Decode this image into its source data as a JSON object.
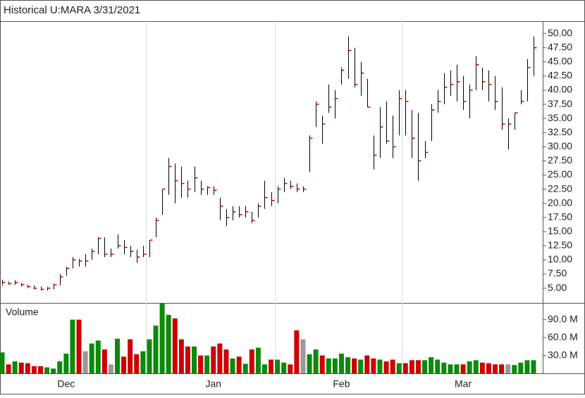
{
  "chart_data": [
    {
      "type": "ohlc",
      "title": "Historical U:MARA 3/31/2021",
      "color": "#000000",
      "close_color": "#cc0000",
      "high": [
        6.5,
        6.2,
        6.4,
        5.9,
        5.6,
        5.5,
        5.3,
        5.2,
        5.8,
        7.5,
        8.8,
        10.5,
        10.2,
        11.0,
        12.0,
        14.0,
        14.0,
        12.0,
        14.5,
        13.5,
        12.5,
        11.8,
        12.5,
        13.5,
        17.5,
        22.5,
        28,
        27,
        26.5,
        24,
        26.5,
        24,
        23,
        23,
        21,
        19,
        19.5,
        19.5,
        19.5,
        18.5,
        20,
        24,
        22,
        23,
        24.5,
        24,
        23.5,
        23,
        32,
        38,
        35.5,
        41,
        40,
        44,
        49.5,
        47.5,
        45,
        42,
        32,
        37,
        38,
        35.5,
        40,
        40,
        36.5,
        36,
        31,
        37.5,
        40,
        43,
        43.5,
        44.5,
        42.5,
        41,
        46,
        44,
        43.5,
        42.5,
        40.5,
        35,
        36,
        40,
        45.5,
        49.5
      ],
      "low": [
        5.5,
        5.6,
        5.6,
        5.3,
        5.0,
        4.8,
        4.6,
        4.6,
        4.8,
        5.5,
        7.2,
        8.5,
        8.8,
        8.8,
        10.0,
        11.0,
        10.5,
        10.5,
        12.0,
        11.0,
        10.5,
        9.5,
        10.5,
        10.5,
        14,
        18,
        21.5,
        20,
        21,
        21,
        22,
        21.5,
        21.5,
        21.5,
        17,
        16,
        17,
        17.5,
        17.5,
        16.5,
        17.5,
        19,
        19.5,
        20,
        22,
        22.5,
        22,
        22,
        25.5,
        33.5,
        30.5,
        36,
        35,
        41,
        42,
        40.5,
        39,
        37,
        26,
        28,
        30.5,
        28,
        32,
        32,
        28,
        24,
        28,
        31,
        36,
        37.5,
        39,
        38,
        36.5,
        35,
        40,
        40,
        38,
        36.5,
        33,
        29.5,
        33,
        37.5,
        38,
        42.5
      ],
      "close": [
        6,
        5.8,
        6,
        5.6,
        5.3,
        5.0,
        4.8,
        5.0,
        5.6,
        7.0,
        8.5,
        10.0,
        9.8,
        9.8,
        11.5,
        13.8,
        11.0,
        11.0,
        12.5,
        12.2,
        11.5,
        10.5,
        11.0,
        13.5,
        17,
        22.5,
        26.5,
        24,
        23.5,
        22.5,
        24.5,
        22.5,
        22.8,
        22.3,
        19.5,
        17.5,
        18.5,
        18,
        18.5,
        17,
        19.5,
        21,
        20.5,
        22.5,
        23.5,
        23,
        22.5,
        22.5,
        31.5,
        37.5,
        34,
        37,
        38.5,
        43.5,
        47,
        41,
        43,
        37,
        28.5,
        33.5,
        31,
        30,
        38.5,
        38,
        31.5,
        27.5,
        29,
        36.5,
        38,
        40.5,
        41,
        41.5,
        38,
        40,
        44.5,
        41.5,
        41,
        38,
        34,
        34,
        36,
        38,
        44,
        47.5
      ],
      "ylim": [
        2.4,
        52.2
      ],
      "yticks": [
        {
          "value": 5,
          "label": "5.00"
        },
        {
          "value": 7.5,
          "label": "7.50"
        },
        {
          "value": 10,
          "label": "10.00"
        },
        {
          "value": 12.5,
          "label": "12.50"
        },
        {
          "value": 15,
          "label": "15.00"
        },
        {
          "value": 17.5,
          "label": "17.50"
        },
        {
          "value": 20,
          "label": "20.00"
        },
        {
          "value": 22.5,
          "label": "22.50"
        },
        {
          "value": 25,
          "label": "25.00"
        },
        {
          "value": 27.5,
          "label": "27.50"
        },
        {
          "value": 30,
          "label": "30.00"
        },
        {
          "value": 32.5,
          "label": "32.50"
        },
        {
          "value": 35,
          "label": "35.00"
        },
        {
          "value": 37.5,
          "label": "37.50"
        },
        {
          "value": 40,
          "label": "40.00"
        },
        {
          "value": 42.5,
          "label": "42.50"
        },
        {
          "value": 45,
          "label": "45.00"
        },
        {
          "value": 47.5,
          "label": "47.50"
        },
        {
          "value": 50,
          "label": "50.00"
        }
      ]
    },
    {
      "type": "bar",
      "title": "Volume",
      "up_color": "#0a8a0a",
      "down_color": "#cc0000",
      "flat_color": "#999999",
      "categories": [
        null,
        null,
        null,
        null,
        null,
        null,
        null,
        null,
        null,
        null,
        "Dec",
        null,
        null,
        null,
        null,
        null,
        null,
        null,
        null,
        null,
        null,
        null,
        null,
        null,
        null,
        null,
        null,
        null,
        null,
        null,
        null,
        null,
        null,
        "Jan",
        null,
        null,
        null,
        null,
        null,
        null,
        null,
        null,
        null,
        null,
        null,
        null,
        null,
        null,
        null,
        null,
        null,
        null,
        null,
        "Feb",
        null,
        null,
        null,
        null,
        null,
        null,
        null,
        null,
        null,
        null,
        null,
        null,
        null,
        null,
        null,
        null,
        null,
        null,
        "Mar",
        null,
        null,
        null,
        null,
        null,
        null,
        null,
        null,
        null,
        null,
        null
      ],
      "values": [
        35,
        15,
        20,
        18,
        17,
        12,
        12,
        10,
        8,
        20,
        33,
        90,
        90,
        37,
        50,
        55,
        40,
        15,
        58,
        28,
        57,
        32,
        37,
        57,
        80,
        117,
        98,
        92,
        57,
        45,
        45,
        30,
        30,
        45,
        50,
        40,
        25,
        28,
        16,
        40,
        43,
        15,
        23,
        23,
        18,
        15,
        72,
        57,
        32,
        40,
        30,
        25,
        25,
        33,
        27,
        25,
        23,
        30,
        25,
        23,
        20,
        23,
        17,
        17,
        22,
        22,
        22,
        27,
        23,
        18,
        15,
        15,
        15,
        20,
        22,
        18,
        17,
        15,
        15,
        15,
        14,
        18,
        22,
        22
      ],
      "ylim": [
        0,
        118
      ],
      "yticks": [
        {
          "value": 30,
          "label": "30.0 M"
        },
        {
          "value": 60,
          "label": "60.0 M"
        },
        {
          "value": 90,
          "label": "90.0 M"
        }
      ]
    }
  ]
}
